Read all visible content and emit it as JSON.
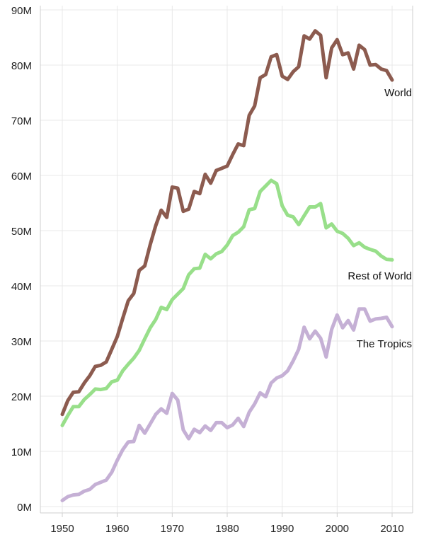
{
  "chart_data": {
    "type": "line",
    "title": "",
    "xlabel": "",
    "ylabel": "",
    "xlim": [
      1946,
      2014
    ],
    "ylim": [
      0,
      90000000
    ],
    "grid": true,
    "x_ticks": [
      1950,
      1960,
      1970,
      1980,
      1990,
      2000,
      2010
    ],
    "x_tick_labels": [
      "1950",
      "1960",
      "1970",
      "1980",
      "1990",
      "2000",
      "2010"
    ],
    "y_ticks": [
      0,
      10000000,
      20000000,
      30000000,
      40000000,
      50000000,
      60000000,
      70000000,
      80000000,
      90000000
    ],
    "y_tick_labels": [
      "0M",
      "10M",
      "20M",
      "30M",
      "40M",
      "50M",
      "60M",
      "70M",
      "80M",
      "90M"
    ],
    "x": [
      1950,
      1951,
      1952,
      1953,
      1954,
      1955,
      1956,
      1957,
      1958,
      1959,
      1960,
      1961,
      1962,
      1963,
      1964,
      1965,
      1966,
      1967,
      1968,
      1969,
      1970,
      1971,
      1972,
      1973,
      1974,
      1975,
      1976,
      1977,
      1978,
      1979,
      1980,
      1981,
      1982,
      1983,
      1984,
      1985,
      1986,
      1987,
      1988,
      1989,
      1990,
      1991,
      1992,
      1993,
      1994,
      1995,
      1996,
      1997,
      1998,
      1999,
      2000,
      2001,
      2002,
      2003,
      2004,
      2005,
      2006,
      2007,
      2008,
      2009,
      2010
    ],
    "series": [
      {
        "name": "World",
        "color": "#8c5b4f",
        "values": [
          16700000,
          19200000,
          20700000,
          20800000,
          22400000,
          23700000,
          25400000,
          25600000,
          26200000,
          28500000,
          30800000,
          34100000,
          37300000,
          38600000,
          42800000,
          43600000,
          47500000,
          50900000,
          53700000,
          52400000,
          57900000,
          57700000,
          53500000,
          53900000,
          57100000,
          56700000,
          60200000,
          58600000,
          60900000,
          61300000,
          61700000,
          63800000,
          65700000,
          65400000,
          70900000,
          72600000,
          77700000,
          78300000,
          81500000,
          81900000,
          78000000,
          77400000,
          78800000,
          79700000,
          85300000,
          84700000,
          86200000,
          85400000,
          77700000,
          83100000,
          84600000,
          81900000,
          82200000,
          79300000,
          83600000,
          82800000,
          80000000,
          80100000,
          79300000,
          79000000,
          77300000
        ]
      },
      {
        "name": "Rest of World",
        "color": "#98df8a",
        "values": [
          14700000,
          16500000,
          18100000,
          18100000,
          19400000,
          20300000,
          21300000,
          21200000,
          21400000,
          22600000,
          22900000,
          24600000,
          25800000,
          26900000,
          28300000,
          30400000,
          32400000,
          33900000,
          36100000,
          35700000,
          37500000,
          38500000,
          39500000,
          42000000,
          43100000,
          43200000,
          45700000,
          44900000,
          45800000,
          46200000,
          47400000,
          49100000,
          49700000,
          50700000,
          53800000,
          54000000,
          57100000,
          58100000,
          59100000,
          58500000,
          54500000,
          52800000,
          52500000,
          51100000,
          52700000,
          54300000,
          54300000,
          54900000,
          50500000,
          51200000,
          49900000,
          49500000,
          48600000,
          47300000,
          47800000,
          47000000,
          46600000,
          46300000,
          45400000,
          44800000,
          44700000
        ]
      },
      {
        "name": "The Tropics",
        "color": "#c5b0d5",
        "values": [
          1100000,
          1800000,
          2100000,
          2200000,
          2800000,
          3100000,
          4000000,
          4400000,
          4800000,
          6200000,
          8400000,
          10300000,
          11700000,
          11800000,
          14700000,
          13300000,
          15000000,
          16700000,
          17700000,
          16900000,
          20500000,
          19300000,
          13900000,
          12300000,
          14000000,
          13400000,
          14600000,
          13800000,
          15200000,
          15200000,
          14300000,
          14800000,
          16000000,
          14500000,
          17100000,
          18600000,
          20600000,
          19900000,
          22400000,
          23300000,
          23700000,
          24600000,
          26400000,
          28500000,
          32500000,
          30400000,
          31800000,
          30500000,
          27100000,
          32100000,
          34700000,
          32400000,
          33700000,
          32000000,
          35800000,
          35800000,
          33600000,
          34000000,
          34100000,
          34300000,
          32600000
        ]
      }
    ],
    "annotations": [
      {
        "text": "World",
        "series": "World"
      },
      {
        "text": "Rest of World",
        "series": "Rest of World"
      },
      {
        "text": "The Tropics",
        "series": "The Tropics"
      }
    ]
  }
}
